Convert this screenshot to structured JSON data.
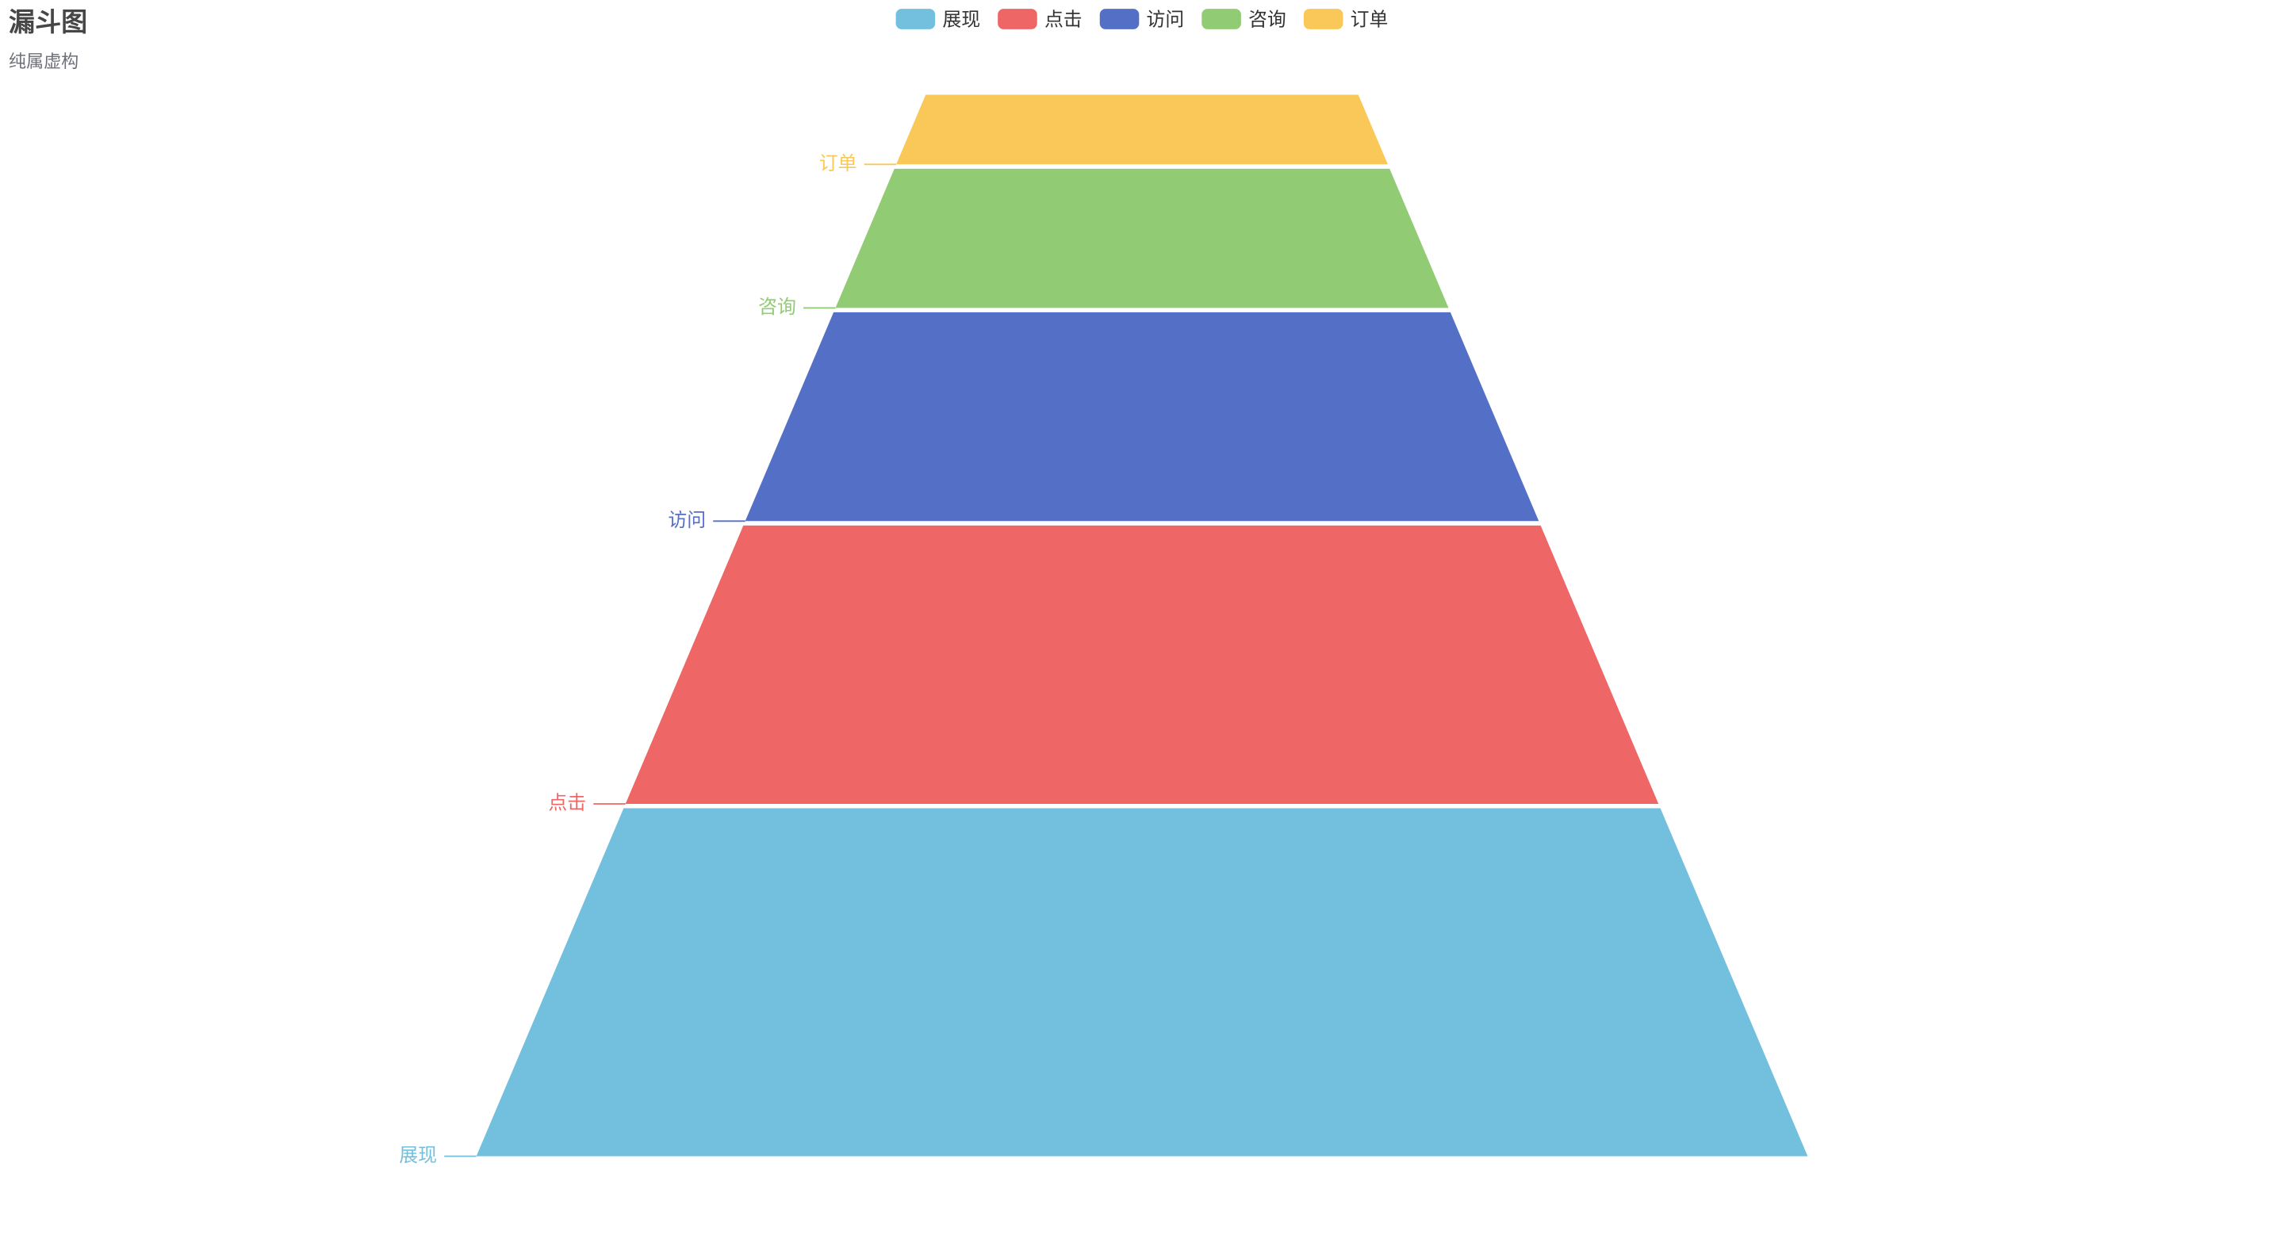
{
  "chart_data": {
    "type": "funnel",
    "title": "漏斗图",
    "subtitle": "纯属虚构",
    "categories": [
      "展现",
      "点击",
      "访问",
      "咨询",
      "订单"
    ],
    "values": [
      100,
      80,
      60,
      40,
      20
    ],
    "colors": [
      "#73c0de",
      "#ee6666",
      "#5470c6",
      "#91cc75",
      "#fac858"
    ]
  }
}
